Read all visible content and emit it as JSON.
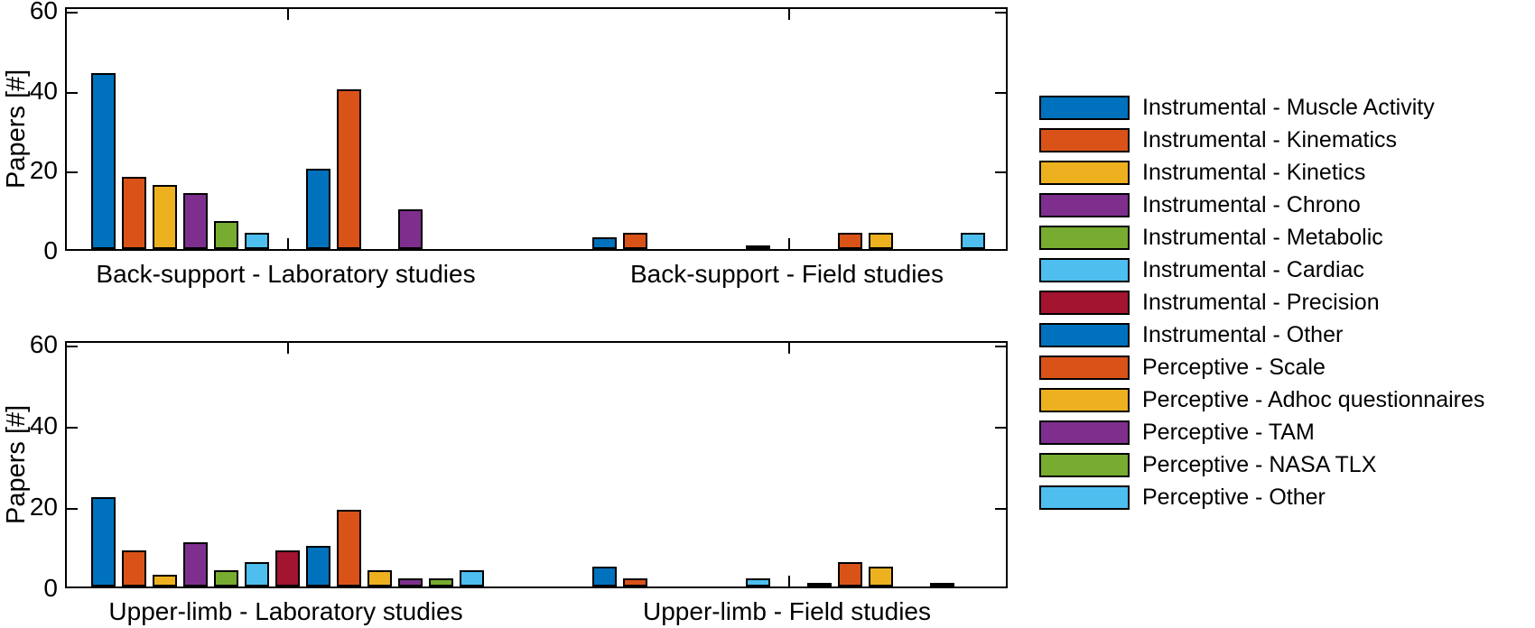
{
  "figure": {
    "background": "#ffffff",
    "axis_color": "#000000"
  },
  "palette": {
    "blue": "#0072BD",
    "orange": "#D95319",
    "yellow": "#EDB120",
    "purple": "#7E2F8E",
    "green": "#77AC30",
    "light_blue": "#4DBEEE",
    "dark_red": "#A2142F"
  },
  "legend": {
    "position": "right",
    "entries": [
      {
        "label": "Instrumental - Muscle Activity",
        "color": "#0072BD"
      },
      {
        "label": "Instrumental - Kinematics",
        "color": "#D95319"
      },
      {
        "label": "Instrumental - Kinetics",
        "color": "#EDB120"
      },
      {
        "label": "Instrumental - Chrono",
        "color": "#7E2F8E"
      },
      {
        "label": "Instrumental - Metabolic",
        "color": "#77AC30"
      },
      {
        "label": "Instrumental - Cardiac",
        "color": "#4DBEEE"
      },
      {
        "label": "Instrumental - Precision",
        "color": "#A2142F"
      },
      {
        "label": "Instrumental - Other",
        "color": "#0072BD"
      },
      {
        "label": "Perceptive - Scale",
        "color": "#D95319"
      },
      {
        "label": "Perceptive - Adhoc questionnaires",
        "color": "#EDB120"
      },
      {
        "label": "Perceptive - TAM",
        "color": "#7E2F8E"
      },
      {
        "label": "Perceptive - NASA TLX",
        "color": "#77AC30"
      },
      {
        "label": "Perceptive - Other",
        "color": "#4DBEEE"
      }
    ]
  },
  "chart_data": [
    {
      "type": "bar",
      "title": "",
      "xlabel": "",
      "ylabel": "Papers [#]",
      "yticks": [
        0,
        20,
        40,
        60
      ],
      "ylim": [
        0,
        61
      ],
      "grid": false,
      "categories": [
        "Back-support - Laboratory studies",
        "Back-support - Field studies"
      ],
      "series": [
        {
          "name": "Instrumental - Muscle Activity",
          "color": "#0072BD",
          "values": [
            44,
            3
          ]
        },
        {
          "name": "Instrumental - Kinematics",
          "color": "#D95319",
          "values": [
            18,
            4
          ]
        },
        {
          "name": "Instrumental - Kinetics",
          "color": "#EDB120",
          "values": [
            16,
            0
          ]
        },
        {
          "name": "Instrumental - Chrono",
          "color": "#7E2F8E",
          "values": [
            14,
            0
          ]
        },
        {
          "name": "Instrumental - Metabolic",
          "color": "#77AC30",
          "values": [
            7,
            0
          ]
        },
        {
          "name": "Instrumental - Cardiac",
          "color": "#4DBEEE",
          "values": [
            4,
            1
          ]
        },
        {
          "name": "Instrumental - Precision",
          "color": "#A2142F",
          "values": [
            0,
            0
          ]
        },
        {
          "name": "Instrumental - Other",
          "color": "#0072BD",
          "values": [
            20,
            0
          ]
        },
        {
          "name": "Perceptive - Scale",
          "color": "#D95319",
          "values": [
            40,
            4
          ]
        },
        {
          "name": "Perceptive - Adhoc questionnaires",
          "color": "#EDB120",
          "values": [
            0,
            4
          ]
        },
        {
          "name": "Perceptive - TAM",
          "color": "#7E2F8E",
          "values": [
            10,
            0
          ]
        },
        {
          "name": "Perceptive - NASA TLX",
          "color": "#77AC30",
          "values": [
            0,
            0
          ]
        },
        {
          "name": "Perceptive - Other",
          "color": "#4DBEEE",
          "values": [
            0,
            4
          ]
        }
      ]
    },
    {
      "type": "bar",
      "title": "",
      "xlabel": "",
      "ylabel": "Papers [#]",
      "yticks": [
        0,
        20,
        40,
        60
      ],
      "ylim": [
        0,
        61
      ],
      "grid": false,
      "categories": [
        "Upper-limb - Laboratory studies",
        "Upper-limb - Field studies"
      ],
      "series": [
        {
          "name": "Instrumental - Muscle Activity",
          "color": "#0072BD",
          "values": [
            22,
            5
          ]
        },
        {
          "name": "Instrumental - Kinematics",
          "color": "#D95319",
          "values": [
            9,
            2
          ]
        },
        {
          "name": "Instrumental - Kinetics",
          "color": "#EDB120",
          "values": [
            3,
            0
          ]
        },
        {
          "name": "Instrumental - Chrono",
          "color": "#7E2F8E",
          "values": [
            11,
            0
          ]
        },
        {
          "name": "Instrumental - Metabolic",
          "color": "#77AC30",
          "values": [
            4,
            0
          ]
        },
        {
          "name": "Instrumental - Cardiac",
          "color": "#4DBEEE",
          "values": [
            6,
            2
          ]
        },
        {
          "name": "Instrumental - Precision",
          "color": "#A2142F",
          "values": [
            9,
            0
          ]
        },
        {
          "name": "Instrumental - Other",
          "color": "#0072BD",
          "values": [
            10,
            1
          ]
        },
        {
          "name": "Perceptive - Scale",
          "color": "#D95319",
          "values": [
            19,
            6
          ]
        },
        {
          "name": "Perceptive - Adhoc questionnaires",
          "color": "#EDB120",
          "values": [
            4,
            5
          ]
        },
        {
          "name": "Perceptive - TAM",
          "color": "#7E2F8E",
          "values": [
            2,
            0
          ]
        },
        {
          "name": "Perceptive - NASA TLX",
          "color": "#77AC30",
          "values": [
            2,
            1
          ]
        },
        {
          "name": "Perceptive - Other",
          "color": "#4DBEEE",
          "values": [
            4,
            0
          ]
        }
      ]
    }
  ]
}
